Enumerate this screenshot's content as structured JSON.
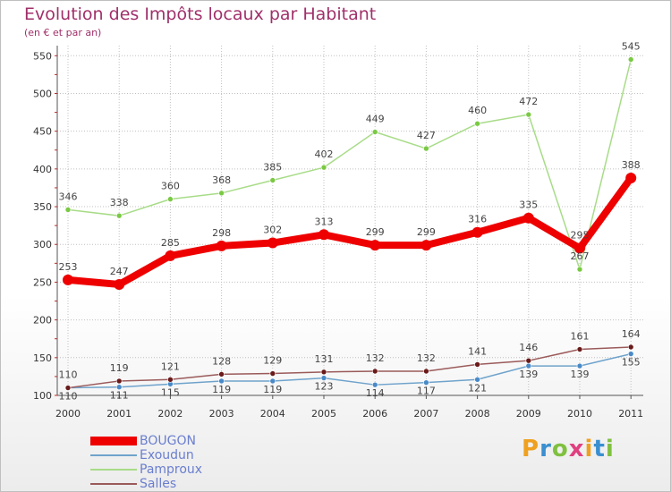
{
  "header": {
    "title": "Evolution des Impôts locaux par Habitant",
    "subtitle": "(en € et par an)"
  },
  "logo": {
    "text": "Proxiti",
    "colors": [
      "#f0a020",
      "#3a8fd0",
      "#80c040",
      "#e04080"
    ]
  },
  "colors": {
    "title": "#a0306a",
    "grid": "#c0c0c0",
    "tick_mark": "#d02020"
  },
  "chart_data": {
    "type": "line",
    "title": "Evolution des Impôts locaux par Habitant",
    "subtitle": "(en € et par an)",
    "xlabel": "",
    "ylabel": "",
    "categories": [
      "2000",
      "2001",
      "2002",
      "2003",
      "2004",
      "2005",
      "2006",
      "2007",
      "2008",
      "2009",
      "2010",
      "2011"
    ],
    "y_ticks": [
      100,
      150,
      200,
      250,
      300,
      350,
      400,
      450,
      500,
      550
    ],
    "ylim": [
      100,
      560
    ],
    "grid": true,
    "legend_position": "bottom-left",
    "series": [
      {
        "name": "BOUGON",
        "color": "#ee0000",
        "marker": "#ee0000",
        "width": "thick",
        "values": [
          253,
          247,
          285,
          298,
          302,
          313,
          299,
          299,
          316,
          335,
          295,
          388
        ],
        "labels": [
          "253",
          "247",
          "285",
          "298",
          "302",
          "313",
          "299",
          "299",
          "316",
          "335",
          "295",
          "388"
        ]
      },
      {
        "name": "Exoudun",
        "color": "#6fa3cc",
        "marker": "#4a8ac8",
        "width": "thin",
        "values": [
          110,
          111,
          115,
          119,
          119,
          123,
          114,
          117,
          121,
          139,
          139,
          155
        ],
        "labels": [
          "110",
          "111",
          "115",
          "119",
          "119",
          "123",
          "114",
          "117",
          "121",
          "139",
          "139",
          "155"
        ]
      },
      {
        "name": "Pamproux",
        "color": "#a8dc88",
        "marker": "#7ac943",
        "width": "thin",
        "values": [
          346,
          338,
          360,
          368,
          385,
          402,
          449,
          427,
          460,
          472,
          267,
          545
        ],
        "labels": [
          "346",
          "338",
          "360",
          "368",
          "385",
          "402",
          "449",
          "427",
          "460",
          "472",
          "267",
          "545"
        ]
      },
      {
        "name": "Salles",
        "color": "#9b5a5a",
        "marker": "#6a1a1a",
        "width": "thin",
        "values": [
          110,
          119,
          121,
          128,
          129,
          131,
          132,
          132,
          141,
          146,
          161,
          164
        ],
        "labels": [
          "110",
          "119",
          "121",
          "128",
          "129",
          "131",
          "132",
          "132",
          "141",
          "146",
          "161",
          "164"
        ]
      }
    ]
  }
}
